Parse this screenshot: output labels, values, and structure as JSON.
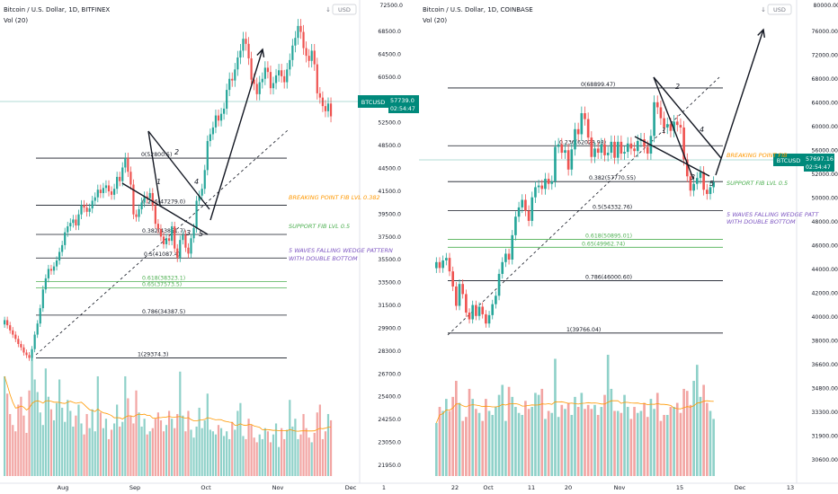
{
  "colors": {
    "up": "#26a69a",
    "down": "#ef5350",
    "vol_up": "#8fd1c9",
    "vol_down": "#f2a5a3",
    "fib_black": "#131722",
    "fib_green": "#4caf50",
    "orange_text": "#ff9800",
    "green_text": "#4caf50",
    "purple_text": "#7e57c2",
    "price_tag": "#00897b",
    "ma_line": "#ff9800"
  },
  "charts": {
    "left": {
      "title": "Bitcoin / U.S. Dollar, 1D, BITFINEX",
      "vol_label": "Vol (20)",
      "price_tag_value": "57739.0",
      "price_tag_time": "02:54:47",
      "price_tag_symbol": "BTCUSD",
      "axis_ticks": [
        "68500.0",
        "64500.0",
        "60500.0",
        "56500.0",
        "52500.0",
        "48500.0",
        "44500.0",
        "41500.0",
        "39500.0",
        "37500.0",
        "35500.0",
        "33500.0",
        "31500.0",
        "29900.0",
        "28300.0",
        "26700.0",
        "25400.0",
        "24250.0",
        "23050.0",
        "21950.0"
      ],
      "top_partial_tick": "72500.0",
      "x_ticks": [
        "Aug",
        "Sep",
        "Oct",
        "Nov",
        "Dec",
        "1"
      ],
      "fib_levels": [
        {
          "label": "0(52800.5)",
          "color": "black"
        },
        {
          "label": "0.236(47279.0)",
          "color": "black"
        },
        {
          "label": "0.382(43851.7)",
          "color": "black"
        },
        {
          "label": "0.5(41087.4)",
          "color": "black"
        },
        {
          "label": "0.618(38323.1)",
          "color": "green"
        },
        {
          "label": "0.65(37573.5)",
          "color": "green"
        },
        {
          "label": "0.786(34387.5)",
          "color": "black"
        },
        {
          "label": "1(29374.3)",
          "color": "black"
        }
      ],
      "wave_labels": [
        "1",
        "2",
        "3",
        "4",
        "5"
      ],
      "annotations": {
        "breaking": "BREAKING POINT FIB LVL 0.382",
        "support": "SUPPORT FIB LVL 0.5",
        "pattern_1": "5 WAVES FALLING WEDGE PATTERN",
        "pattern_2": "WITH DOUBLE BOTTOM"
      }
    },
    "right": {
      "title": "Bitcoin / U.S. Dollar, 1D, COINBASE",
      "vol_label": "Vol (20)",
      "price_tag_value": "57697.16",
      "price_tag_time": "02:54:47",
      "price_tag_symbol": "BTCUSD",
      "axis_ticks": [
        "76000.00",
        "72000.00",
        "68000.00",
        "64000.00",
        "60000.00",
        "56000.00",
        "52000.00",
        "50000.00",
        "48000.00",
        "46000.00",
        "44000.00",
        "42000.00",
        "40000.00",
        "38000.00",
        "36600.00",
        "34800.00",
        "33300.00",
        "31900.00",
        "30600.00"
      ],
      "top_partial_tick": "80000.00",
      "x_ticks": [
        "22",
        "Oct",
        "11",
        "20",
        "Nov",
        "15",
        "Dec",
        "13"
      ],
      "fib_levels": [
        {
          "label": "0(68899.47)",
          "color": "black"
        },
        {
          "label": "0.236(62028.98)",
          "color": "black"
        },
        {
          "label": "0.382(57770.55)",
          "color": "black"
        },
        {
          "label": "0.5(54332.76)",
          "color": "black"
        },
        {
          "label": "0.618(50895.01)",
          "color": "green"
        },
        {
          "label": "0.65(49962.74)",
          "color": "green"
        },
        {
          "label": "0.786(46000.60)",
          "color": "black"
        },
        {
          "label": "1(39766.04)",
          "color": "black"
        }
      ],
      "wave_labels": [
        "1",
        "2",
        "3",
        "4",
        "5"
      ],
      "annotations": {
        "breaking": "BREAKING POINT FIB",
        "support": "SUPPORT FIB LVL 0.5",
        "pattern_1": "5 WAVES FALLING WEDGE PATT",
        "pattern_2": "WITH DOUBLE BOTTOM"
      }
    }
  },
  "chart_data": [
    {
      "type": "candlestick",
      "title": "Bitcoin / U.S. Dollar, 1D, BITFINEX",
      "x_range": [
        "Jul",
        "Dec"
      ],
      "ylim": [
        29000,
        70500
      ],
      "closes": [
        33800,
        33200,
        32600,
        32100,
        31600,
        31000,
        30600,
        30000,
        29700,
        29374,
        30400,
        32100,
        33400,
        35200,
        37400,
        38700,
        39800,
        39600,
        40100,
        40800,
        41800,
        42600,
        44100,
        44800,
        45200,
        45600,
        44900,
        46200,
        47300,
        47000,
        46500,
        46900,
        47800,
        48200,
        49100,
        48700,
        49300,
        49600,
        48900,
        48500,
        49200,
        50600,
        50100,
        51700,
        52800,
        51200,
        49700,
        46200,
        45900,
        46800,
        47600,
        48300,
        48100,
        48700,
        47200,
        45100,
        44500,
        43600,
        42700,
        43400,
        43100,
        44800,
        42200,
        41100,
        43200,
        43800,
        42300,
        41600,
        43400,
        44600,
        47800,
        48400,
        49200,
        51400,
        54800,
        55600,
        56400,
        57800,
        57200,
        58000,
        58600,
        60800,
        62100,
        61900,
        63200,
        64600,
        65400,
        66800,
        66200,
        64500,
        62000,
        61500,
        60300,
        61700,
        62100,
        63400,
        62900,
        61000,
        61600,
        62500,
        63100,
        62400,
        61700,
        63200,
        64300,
        66000,
        66900,
        68300,
        67600,
        65700,
        64800,
        64200,
        65400,
        63800,
        60400,
        59900,
        58900,
        58300,
        59200,
        57700
      ],
      "volume": [
        27600,
        26500,
        25200,
        24500,
        24100,
        25800,
        26300,
        25100,
        24000,
        26700,
        28800,
        27400,
        26600,
        25300,
        24500,
        28100,
        26300,
        25500,
        24800,
        25900,
        27400,
        25600,
        24700,
        26100,
        25400,
        24400,
        25100,
        25800,
        24600,
        23900,
        25200,
        24300,
        25500,
        24100,
        27600,
        25300,
        24300,
        24900,
        23600,
        24200,
        24600,
        25800,
        24400,
        24700,
        27600,
        26200,
        25100,
        24600,
        26700,
        25300,
        24400,
        24900,
        23900,
        24100,
        24300,
        24900,
        25300,
        24800,
        24100,
        24500,
        25400,
        24900,
        24300,
        25200,
        27900,
        25100,
        24100,
        25400,
        24200,
        23700,
        24400,
        25600,
        24300,
        24800,
        26500,
        24200,
        24100,
        23900,
        24500,
        24300,
        23800,
        24100,
        23600,
        24700,
        24200,
        25400,
        25900,
        23800,
        23600,
        24900,
        24500,
        23700,
        23400,
        23900,
        23600,
        24300,
        24100,
        23400,
        23900,
        24600,
        23100,
        24300,
        23600,
        24200,
        26100,
        24400,
        24900,
        23600,
        23900,
        25200,
        24300,
        23700,
        23400,
        24000,
        25300,
        25800,
        23600,
        24100,
        25200,
        24800
      ],
      "fib_levels": [
        52800.5,
        47279.0,
        43851.7,
        41087.4,
        38323.1,
        37573.5,
        34387.5,
        29374.3
      ],
      "current_price": 57739.0
    },
    {
      "type": "candlestick",
      "title": "Bitcoin / U.S. Dollar, 1D, COINBASE",
      "x_range": [
        "Sep",
        "Dec"
      ],
      "ylim": [
        39000,
        78500
      ],
      "closes": [
        48200,
        47500,
        48400,
        48700,
        47100,
        45300,
        43000,
        45600,
        44400,
        42200,
        41400,
        43100,
        41800,
        42900,
        42000,
        40900,
        41900,
        43200,
        44200,
        46800,
        48200,
        49200,
        48500,
        51400,
        53600,
        54700,
        55600,
        54300,
        53100,
        55900,
        57100,
        57300,
        56900,
        58100,
        57500,
        57800,
        61900,
        62200,
        61200,
        61500,
        59200,
        61600,
        64000,
        63400,
        65900,
        65200,
        63000,
        60700,
        61700,
        61200,
        62200,
        60900,
        61200,
        62500,
        60600,
        62500,
        61100,
        61300,
        62300,
        61700,
        61400,
        62600,
        62800,
        61900,
        61100,
        63200,
        67200,
        66600,
        65300,
        64200,
        64600,
        63800,
        64900,
        64500,
        64200,
        60400,
        58400,
        56700,
        57500,
        58200,
        58900,
        56800,
        56300,
        57100,
        57700
      ],
      "volume": [
        33100,
        33900,
        33700,
        34300,
        33700,
        34400,
        35200,
        34100,
        33200,
        33400,
        34800,
        34300,
        33800,
        33600,
        33200,
        34300,
        33700,
        33500,
        33900,
        34500,
        35000,
        33200,
        34900,
        34400,
        33900,
        33600,
        33500,
        34200,
        33800,
        33900,
        34600,
        34500,
        34800,
        33300,
        33700,
        33600,
        36300,
        33400,
        34000,
        33800,
        34100,
        33500,
        34400,
        33900,
        34600,
        33800,
        34000,
        33800,
        34000,
        33500,
        33900,
        34500,
        36500,
        34800,
        33700,
        33700,
        33600,
        34500,
        33900,
        33300,
        33900,
        33600,
        33700,
        34100,
        33400,
        34300,
        33800,
        34600,
        33200,
        33500,
        33500,
        33900,
        33900,
        34100,
        33600,
        34800,
        34700,
        34000,
        35200,
        36000,
        34400,
        35000,
        34100,
        33700,
        33300
      ],
      "fib_levels": [
        68899.47,
        62028.98,
        57770.55,
        54332.76,
        50895.01,
        49962.74,
        46000.6,
        39766.04
      ],
      "current_price": 57697.16
    }
  ]
}
